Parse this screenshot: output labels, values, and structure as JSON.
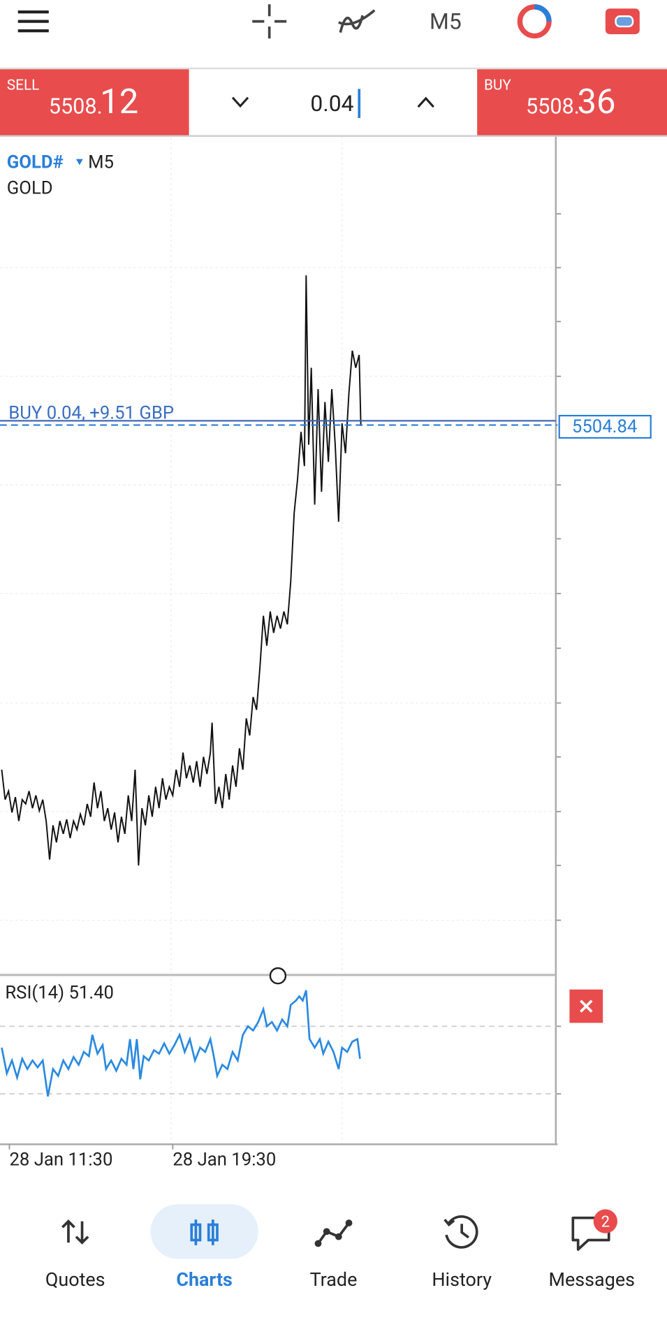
{
  "top_bar": {
    "timeframe": "M5"
  },
  "order_panel": {
    "sell": {
      "label": "SELL",
      "price_main": "5508.",
      "price_big": "12"
    },
    "volume": "0.04",
    "buy": {
      "label": "BUY",
      "price_main": "5508.",
      "price_big": "36"
    }
  },
  "chart": {
    "symbol": "GOLD#",
    "timeframe": "M5",
    "description": "GOLD",
    "position_label": "BUY 0.04,  +9.51 GBP",
    "price_label": "5504.84",
    "indicator": "RSI(14) 51.40",
    "time_labels": [
      "28 Jan 11:30",
      "28 Jan 19:30"
    ]
  },
  "nav": {
    "items": [
      "Quotes",
      "Charts",
      "Trade",
      "History",
      "Messages"
    ],
    "badge": "2"
  }
}
